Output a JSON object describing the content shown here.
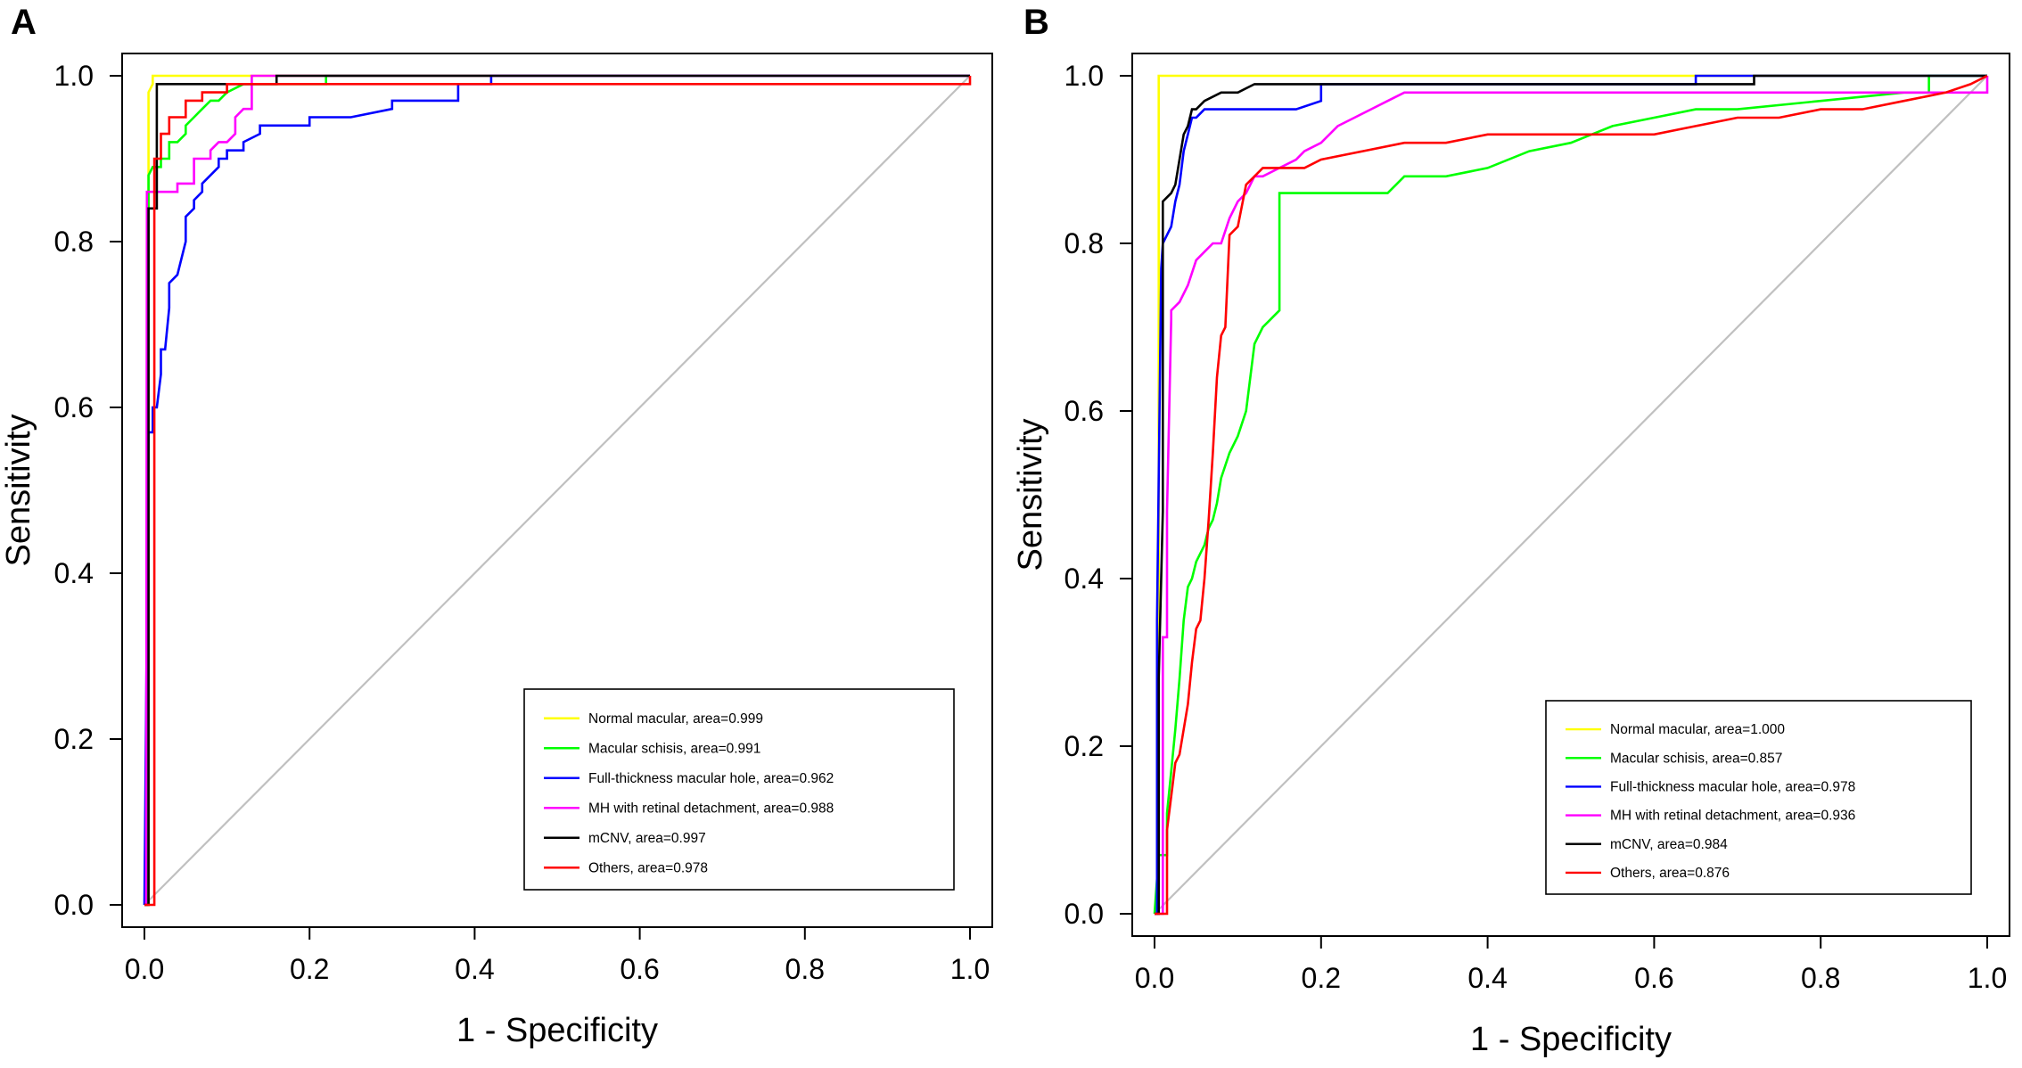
{
  "chart_data": [
    {
      "panel": "A",
      "type": "line",
      "xlabel": "1 - Specificity",
      "ylabel": "Sensitivity",
      "xlim": [
        0.0,
        1.0
      ],
      "ylim": [
        0.0,
        1.0
      ],
      "xticks": [
        "0.0",
        "0.2",
        "0.4",
        "0.6",
        "0.8",
        "1.0"
      ],
      "yticks": [
        "0.0",
        "0.2",
        "0.4",
        "0.6",
        "0.8",
        "1.0"
      ],
      "reference_line": {
        "x": [
          0,
          1
        ],
        "y": [
          0,
          1
        ],
        "color": "#c0c0c0"
      },
      "legend_position": "bottom-right",
      "series": [
        {
          "name": "Normal macular, area=0.999",
          "color": "#ffff00",
          "x": [
            0,
            0.005,
            0.005,
            0.01,
            0.01,
            1.0
          ],
          "y": [
            0,
            0,
            0.98,
            0.99,
            1.0,
            1.0
          ]
        },
        {
          "name": "Macular schisis, area=0.991",
          "color": "#00ff00",
          "x": [
            0,
            0.003,
            0.005,
            0.005,
            0.01,
            0.02,
            0.02,
            0.03,
            0.03,
            0.04,
            0.05,
            0.05,
            0.06,
            0.07,
            0.08,
            0.09,
            0.1,
            0.12,
            0.14,
            0.22,
            0.22,
            1.0
          ],
          "y": [
            0,
            0,
            0.78,
            0.88,
            0.89,
            0.89,
            0.9,
            0.9,
            0.92,
            0.92,
            0.93,
            0.94,
            0.95,
            0.96,
            0.97,
            0.97,
            0.98,
            0.99,
            0.99,
            0.99,
            1.0,
            1.0
          ]
        },
        {
          "name": "Full-thickness macular hole, area=0.962",
          "color": "#0000ff",
          "x": [
            0,
            0.005,
            0.01,
            0.01,
            0.015,
            0.02,
            0.02,
            0.025,
            0.03,
            0.03,
            0.04,
            0.05,
            0.05,
            0.06,
            0.06,
            0.07,
            0.07,
            0.08,
            0.09,
            0.09,
            0.1,
            0.1,
            0.12,
            0.12,
            0.14,
            0.14,
            0.16,
            0.18,
            0.2,
            0.2,
            0.25,
            0.3,
            0.3,
            0.38,
            0.38,
            0.42,
            0.42,
            1.0
          ],
          "y": [
            0,
            0.57,
            0.57,
            0.6,
            0.6,
            0.64,
            0.67,
            0.67,
            0.72,
            0.75,
            0.76,
            0.8,
            0.83,
            0.84,
            0.85,
            0.86,
            0.87,
            0.88,
            0.89,
            0.9,
            0.9,
            0.91,
            0.91,
            0.92,
            0.93,
            0.94,
            0.94,
            0.94,
            0.94,
            0.95,
            0.95,
            0.96,
            0.97,
            0.97,
            0.99,
            0.99,
            1.0,
            1.0
          ]
        },
        {
          "name": "MH with retinal detachment, area=0.988",
          "color": "#ff00ff",
          "x": [
            0,
            0.002,
            0.003,
            0.04,
            0.04,
            0.06,
            0.06,
            0.08,
            0.08,
            0.09,
            0.1,
            0.11,
            0.11,
            0.12,
            0.13,
            0.13,
            0.2,
            1.0
          ],
          "y": [
            0,
            0,
            0.86,
            0.86,
            0.87,
            0.87,
            0.9,
            0.9,
            0.91,
            0.92,
            0.92,
            0.93,
            0.95,
            0.96,
            0.96,
            1.0,
            1.0,
            1.0
          ]
        },
        {
          "name": "mCNV, area=0.997",
          "color": "#000000",
          "x": [
            0,
            0.005,
            0.005,
            0.015,
            0.015,
            0.16,
            0.16,
            1.0
          ],
          "y": [
            0,
            0,
            0.84,
            0.84,
            0.99,
            0.99,
            1.0,
            1.0
          ]
        },
        {
          "name": "Others, area=0.978",
          "color": "#ff0000",
          "x": [
            0,
            0.012,
            0.012,
            0.02,
            0.02,
            0.03,
            0.03,
            0.05,
            0.05,
            0.07,
            0.07,
            0.1,
            0.1,
            1.0,
            1.0
          ],
          "y": [
            0,
            0,
            0.9,
            0.9,
            0.93,
            0.93,
            0.95,
            0.95,
            0.97,
            0.97,
            0.98,
            0.98,
            0.99,
            0.99,
            1.0
          ]
        }
      ]
    },
    {
      "panel": "B",
      "type": "line",
      "xlabel": "1 - Specificity",
      "ylabel": "Sensitivity",
      "xlim": [
        0.0,
        1.0
      ],
      "ylim": [
        0.0,
        1.0
      ],
      "xticks": [
        "0.0",
        "0.2",
        "0.4",
        "0.6",
        "0.8",
        "1.0"
      ],
      "yticks": [
        "0.0",
        "0.2",
        "0.4",
        "0.6",
        "0.8",
        "1.0"
      ],
      "reference_line": {
        "x": [
          0,
          1
        ],
        "y": [
          0,
          1
        ],
        "color": "#c0c0c0"
      },
      "legend_position": "bottom-right",
      "series": [
        {
          "name": "Normal macular, area=1.000",
          "color": "#ffff00",
          "x": [
            0,
            0.005,
            0.005,
            1.0
          ],
          "y": [
            0,
            0,
            1.0,
            1.0
          ]
        },
        {
          "name": "Macular schisis, area=0.857",
          "color": "#00ff00",
          "x": [
            0,
            0.005,
            0.005,
            0.015,
            0.015,
            0.02,
            0.025,
            0.03,
            0.035,
            0.04,
            0.045,
            0.05,
            0.06,
            0.065,
            0.07,
            0.075,
            0.08,
            0.09,
            0.1,
            0.11,
            0.12,
            0.13,
            0.14,
            0.15,
            0.15,
            0.28,
            0.29,
            0.3,
            0.35,
            0.4,
            0.45,
            0.5,
            0.55,
            0.6,
            0.65,
            0.7,
            0.8,
            0.9,
            0.93,
            0.93,
            1.0
          ],
          "y": [
            0,
            0.07,
            0.07,
            0.07,
            0.12,
            0.17,
            0.22,
            0.28,
            0.35,
            0.39,
            0.4,
            0.42,
            0.44,
            0.46,
            0.47,
            0.49,
            0.52,
            0.55,
            0.57,
            0.6,
            0.68,
            0.7,
            0.71,
            0.72,
            0.86,
            0.86,
            0.87,
            0.88,
            0.88,
            0.89,
            0.91,
            0.92,
            0.94,
            0.95,
            0.96,
            0.96,
            0.97,
            0.98,
            0.98,
            1.0,
            1.0
          ]
        },
        {
          "name": "Full-thickness macular hole, area=0.978",
          "color": "#0000ff",
          "x": [
            0,
            0.003,
            0.003,
            0.008,
            0.01,
            0.015,
            0.02,
            0.025,
            0.03,
            0.035,
            0.04,
            0.045,
            0.05,
            0.06,
            0.07,
            0.08,
            0.1,
            0.12,
            0.14,
            0.17,
            0.2,
            0.2,
            0.25,
            0.3,
            0.4,
            0.5,
            0.6,
            0.65,
            0.65,
            1.0
          ],
          "y": [
            0,
            0,
            0.35,
            0.77,
            0.8,
            0.81,
            0.82,
            0.85,
            0.87,
            0.91,
            0.93,
            0.95,
            0.95,
            0.96,
            0.96,
            0.96,
            0.96,
            0.96,
            0.96,
            0.96,
            0.97,
            0.99,
            0.99,
            0.99,
            0.99,
            0.99,
            0.99,
            0.99,
            1.0,
            1.0
          ]
        },
        {
          "name": "MH with retinal detachment, area=0.936",
          "color": "#ff00ff",
          "x": [
            0,
            0.01,
            0.01,
            0.015,
            0.015,
            0.02,
            0.02,
            0.03,
            0.04,
            0.05,
            0.06,
            0.07,
            0.08,
            0.09,
            0.1,
            0.11,
            0.12,
            0.13,
            0.15,
            0.17,
            0.18,
            0.2,
            0.22,
            0.24,
            0.26,
            0.28,
            0.3,
            1.0,
            1.0
          ],
          "y": [
            0,
            0,
            0.33,
            0.33,
            0.48,
            0.71,
            0.72,
            0.73,
            0.75,
            0.78,
            0.79,
            0.8,
            0.8,
            0.83,
            0.85,
            0.86,
            0.88,
            0.88,
            0.89,
            0.9,
            0.91,
            0.92,
            0.94,
            0.95,
            0.96,
            0.97,
            0.98,
            0.98,
            1.0
          ]
        },
        {
          "name": "mCNV, area=0.984",
          "color": "#000000",
          "x": [
            0,
            0.005,
            0.005,
            0.01,
            0.01,
            0.02,
            0.025,
            0.03,
            0.035,
            0.04,
            0.045,
            0.05,
            0.06,
            0.08,
            0.1,
            0.12,
            0.13,
            0.15,
            0.2,
            0.3,
            0.5,
            0.65,
            0.7,
            0.72,
            0.72,
            1.0
          ],
          "y": [
            0,
            0,
            0.28,
            0.48,
            0.85,
            0.86,
            0.87,
            0.9,
            0.93,
            0.94,
            0.96,
            0.96,
            0.97,
            0.98,
            0.98,
            0.99,
            0.99,
            0.99,
            0.99,
            0.99,
            0.99,
            0.99,
            0.99,
            0.99,
            1.0,
            1.0
          ]
        },
        {
          "name": "Others, area=0.876",
          "color": "#ff0000",
          "x": [
            0,
            0.015,
            0.015,
            0.02,
            0.025,
            0.03,
            0.035,
            0.04,
            0.045,
            0.05,
            0.055,
            0.06,
            0.065,
            0.07,
            0.075,
            0.08,
            0.085,
            0.09,
            0.1,
            0.11,
            0.12,
            0.13,
            0.15,
            0.18,
            0.2,
            0.25,
            0.3,
            0.35,
            0.4,
            0.45,
            0.5,
            0.55,
            0.6,
            0.65,
            0.7,
            0.75,
            0.8,
            0.85,
            0.9,
            0.95,
            0.98,
            1.0
          ],
          "y": [
            0,
            0,
            0.1,
            0.14,
            0.18,
            0.19,
            0.22,
            0.25,
            0.3,
            0.34,
            0.35,
            0.4,
            0.47,
            0.55,
            0.64,
            0.69,
            0.7,
            0.81,
            0.82,
            0.87,
            0.88,
            0.89,
            0.89,
            0.89,
            0.9,
            0.91,
            0.92,
            0.92,
            0.93,
            0.93,
            0.93,
            0.93,
            0.93,
            0.94,
            0.95,
            0.95,
            0.96,
            0.96,
            0.97,
            0.98,
            0.99,
            1.0
          ]
        }
      ]
    }
  ]
}
